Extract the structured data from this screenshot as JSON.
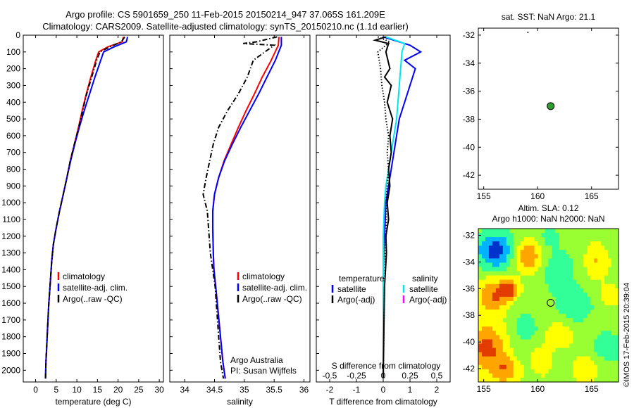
{
  "header": {
    "title_line1": "Argo profile: CS 5901659_250 11-Feb-2015 20150214_947 37.065S 161.209E",
    "title_line2": "Climatology: CARS2009. Satellite-adjusted climatology: synTS_20150210.nc (1.1d earlier)"
  },
  "stamp": "©IMOS 17-Feb-2015 20:39:04",
  "colors": {
    "climatology": "#ff0000",
    "satellite": "#0000ff",
    "argo": "#000000",
    "sal_satellite": "#00e5ee",
    "sal_argo": "#ff00ff"
  },
  "chart_data": [
    {
      "type": "line",
      "panel": "temperature",
      "xlabel": "temperature (deg C)",
      "ylabel": "",
      "xlim": [
        -3,
        31
      ],
      "ylim": [
        2070,
        0
      ],
      "xticks": [
        0,
        5,
        10,
        15,
        20,
        25,
        30
      ],
      "yticks": [
        0,
        100,
        200,
        300,
        400,
        500,
        600,
        700,
        800,
        900,
        1000,
        1100,
        1200,
        1300,
        1400,
        1500,
        1600,
        1700,
        1800,
        1900,
        2000
      ],
      "legend": [
        "climatology",
        "satellite-adj. clim.",
        "Argo(..raw -QC)"
      ],
      "series": [
        {
          "name": "climatology",
          "color": "#ff0000",
          "style": "solid",
          "x": [
            21.3,
            21.0,
            17.5,
            15.3,
            14.6,
            13.4,
            12.3,
            11.3,
            10.4,
            9.4,
            8.4,
            7.6,
            6.7,
            5.8,
            5.0,
            4.3,
            3.9,
            3.5,
            3.2,
            2.9,
            2.7,
            2.5,
            2.4
          ],
          "y": [
            10,
            40,
            70,
            100,
            150,
            250,
            350,
            450,
            550,
            650,
            750,
            850,
            950,
            1050,
            1150,
            1250,
            1350,
            1500,
            1600,
            1750,
            1850,
            1950,
            2050
          ]
        },
        {
          "name": "satellite-adj. clim.",
          "color": "#0000ff",
          "style": "solid",
          "x": [
            22.3,
            22.0,
            19.0,
            16.5,
            15.8,
            14.4,
            13.1,
            11.8,
            10.6,
            9.5,
            8.5,
            7.6,
            6.7,
            5.8,
            5.0,
            4.3,
            3.9,
            3.5,
            3.2,
            2.9,
            2.7,
            2.5,
            2.4
          ],
          "y": [
            10,
            40,
            70,
            100,
            150,
            250,
            350,
            450,
            550,
            650,
            750,
            850,
            950,
            1050,
            1150,
            1250,
            1350,
            1500,
            1600,
            1750,
            1850,
            1950,
            2050
          ]
        },
        {
          "name": "Argo(..raw -QC)",
          "color": "#000000",
          "style": "dashdot",
          "x": [
            21.6,
            20.8,
            18.0,
            15.6,
            14.8,
            13.6,
            12.4,
            11.4,
            10.5,
            9.4,
            8.4,
            7.6,
            6.7,
            5.8,
            5.0,
            4.3,
            3.9,
            3.5,
            3.2,
            2.9,
            2.7,
            2.5,
            2.4
          ],
          "y": [
            10,
            40,
            70,
            100,
            150,
            250,
            350,
            450,
            550,
            650,
            750,
            850,
            950,
            1050,
            1150,
            1250,
            1350,
            1500,
            1600,
            1750,
            1850,
            1950,
            2050
          ]
        }
      ]
    },
    {
      "type": "line",
      "panel": "salinity",
      "xlabel": "salinity",
      "ylabel": "",
      "xlim": [
        33.75,
        36.1
      ],
      "ylim": [
        2070,
        0
      ],
      "xticks": [
        34,
        34.5,
        35,
        35.5,
        36
      ],
      "xticklabels": [
        "34",
        "34.5",
        "35",
        "35.5",
        "36"
      ],
      "legend": [
        "climatology",
        "satellite-adj. clim.",
        "Argo(..raw -QC)"
      ],
      "annotations": [
        "Argo Australia",
        "PI: Susan Wijffels"
      ],
      "series": [
        {
          "name": "climatology",
          "color": "#ff0000",
          "style": "solid",
          "x": [
            35.58,
            35.57,
            35.45,
            35.3,
            35.17,
            35.03,
            34.9,
            34.78,
            34.66,
            34.57,
            34.5,
            34.47,
            34.47,
            34.48,
            34.49,
            34.52,
            34.56,
            34.6,
            34.64,
            34.68
          ],
          "y": [
            10,
            60,
            150,
            250,
            350,
            450,
            550,
            650,
            750,
            850,
            950,
            1050,
            1150,
            1300,
            1400,
            1500,
            1650,
            1800,
            1950,
            2050
          ]
        },
        {
          "name": "satellite-adj. clim.",
          "color": "#0000ff",
          "style": "solid",
          "x": [
            35.62,
            35.62,
            35.52,
            35.38,
            35.24,
            35.09,
            34.94,
            34.8,
            34.67,
            34.57,
            34.5,
            34.47,
            34.47,
            34.48,
            34.49,
            34.52,
            34.56,
            34.6,
            34.64,
            34.68
          ],
          "y": [
            10,
            60,
            150,
            250,
            350,
            450,
            550,
            650,
            750,
            850,
            950,
            1050,
            1150,
            1300,
            1400,
            1500,
            1650,
            1800,
            1950,
            2050
          ]
        },
        {
          "name": "Argo(..raw -QC)",
          "color": "#000000",
          "style": "dashdot",
          "x": [
            35.55,
            35.2,
            34.98,
            35.5,
            35.15,
            35.05,
            34.9,
            34.72,
            34.57,
            34.48,
            34.42,
            34.36,
            34.31,
            34.38,
            34.4,
            34.43,
            34.47,
            34.51,
            34.54,
            34.57,
            34.6,
            34.65
          ],
          "y": [
            10,
            40,
            50,
            60,
            150,
            250,
            350,
            450,
            550,
            650,
            750,
            850,
            950,
            1050,
            1150,
            1300,
            1400,
            1500,
            1650,
            1800,
            1950,
            2050
          ]
        }
      ]
    },
    {
      "type": "line",
      "panel": "difference",
      "xlabel": "T difference from climatology",
      "xlabel_top": "S difference from climatology",
      "xlim": [
        -2.5,
        2.5
      ],
      "ylim": [
        2070,
        0
      ],
      "xticks": [
        -2,
        -1,
        0,
        1,
        2
      ],
      "xticklabels": [
        "-2",
        "-1",
        "0",
        "1",
        "2"
      ],
      "s_ticklabels": [
        "-0.5",
        "-0.25",
        "0",
        "0.25",
        "0.5"
      ],
      "legend_temperature_heading": "temperature",
      "legend_temperature": [
        "satellite",
        "Argo(-adj)"
      ],
      "legend_salinity_heading": "salinity",
      "legend_salinity": [
        "satellite",
        "Argo(-adj)"
      ],
      "series": [
        {
          "name": "temperature satellite",
          "color": "#0000ff",
          "style": "solid",
          "x": [
            0.0,
            0.6,
            1.0,
            1.4,
            0.8,
            1.2,
            1.0,
            0.8,
            0.6,
            0.5,
            0.4,
            0.3,
            0.2,
            0.1,
            0.05,
            0.0,
            0.0,
            0.0
          ],
          "y": [
            10,
            40,
            60,
            100,
            150,
            200,
            300,
            400,
            500,
            600,
            700,
            800,
            900,
            1000,
            1200,
            1400,
            1700,
            2050
          ]
        },
        {
          "name": "salinity satellite",
          "color": "#00e5ee",
          "style": "solid",
          "x": [
            0.1,
            0.8,
            0.7,
            0.65,
            0.6,
            0.55,
            0.5,
            0.4,
            0.3,
            0.2,
            0.1,
            0.05,
            0.0,
            0.0,
            0.0
          ],
          "y": [
            10,
            50,
            100,
            200,
            300,
            400,
            500,
            600,
            700,
            800,
            900,
            1000,
            1200,
            1500,
            2050
          ]
        },
        {
          "name": "temperature Argo",
          "color": "#000000",
          "style": "solid",
          "x": [
            0.1,
            -0.3,
            0.2,
            0.1,
            0.25,
            0.05,
            0.3,
            0.15,
            0.35,
            0.25,
            0.3,
            0.2,
            0.25,
            0.15,
            0.2,
            0.1,
            0.12,
            0.05,
            0.03,
            0.0
          ],
          "y": [
            10,
            30,
            50,
            100,
            200,
            250,
            300,
            400,
            500,
            600,
            700,
            800,
            900,
            1000,
            1100,
            1200,
            1300,
            1500,
            1700,
            2050
          ]
        },
        {
          "name": "salinity Argo",
          "color": "#000000",
          "style": "dotted",
          "x": [
            -0.2,
            0.25,
            -0.2,
            -0.1,
            -0.05,
            0.05,
            0.1,
            0.2,
            0.15,
            0.2,
            0.15,
            0.1,
            0.12,
            0.05,
            0.0
          ],
          "y": [
            10,
            40,
            100,
            200,
            300,
            400,
            500,
            600,
            700,
            800,
            900,
            1000,
            1100,
            1500,
            2050
          ]
        }
      ]
    },
    {
      "type": "scatter",
      "panel": "location",
      "title": "sat. SST: NaN Argo: 21.1",
      "xlim": [
        154.5,
        167.5
      ],
      "ylim": [
        -43.0,
        -31.5
      ],
      "xticks": [
        155,
        160,
        165
      ],
      "yticks": [
        -32,
        -34,
        -36,
        -38,
        -40,
        -42
      ],
      "points": [
        {
          "x": 161.209,
          "y": -37.065,
          "color": "#2ca02c"
        },
        {
          "x": 159.1,
          "y": -31.8,
          "color": "#000000"
        }
      ]
    },
    {
      "type": "heatmap",
      "panel": "sla",
      "title_line1": "Altim. SLA: 0.12",
      "title_line2": "Argo h1000: NaN h2000: NaN",
      "xlim": [
        154.5,
        167.5
      ],
      "ylim": [
        -43.0,
        -31.5
      ],
      "xticks": [
        155,
        160,
        165
      ],
      "yticks": [
        -32,
        -34,
        -36,
        -38,
        -40,
        -42
      ],
      "marker": {
        "x": 161.209,
        "y": -37.065
      },
      "palette": [
        "#0033cc",
        "#00b3ff",
        "#33ff99",
        "#99ff33",
        "#ffff00",
        "#ffa500",
        "#e23c00"
      ]
    }
  ]
}
